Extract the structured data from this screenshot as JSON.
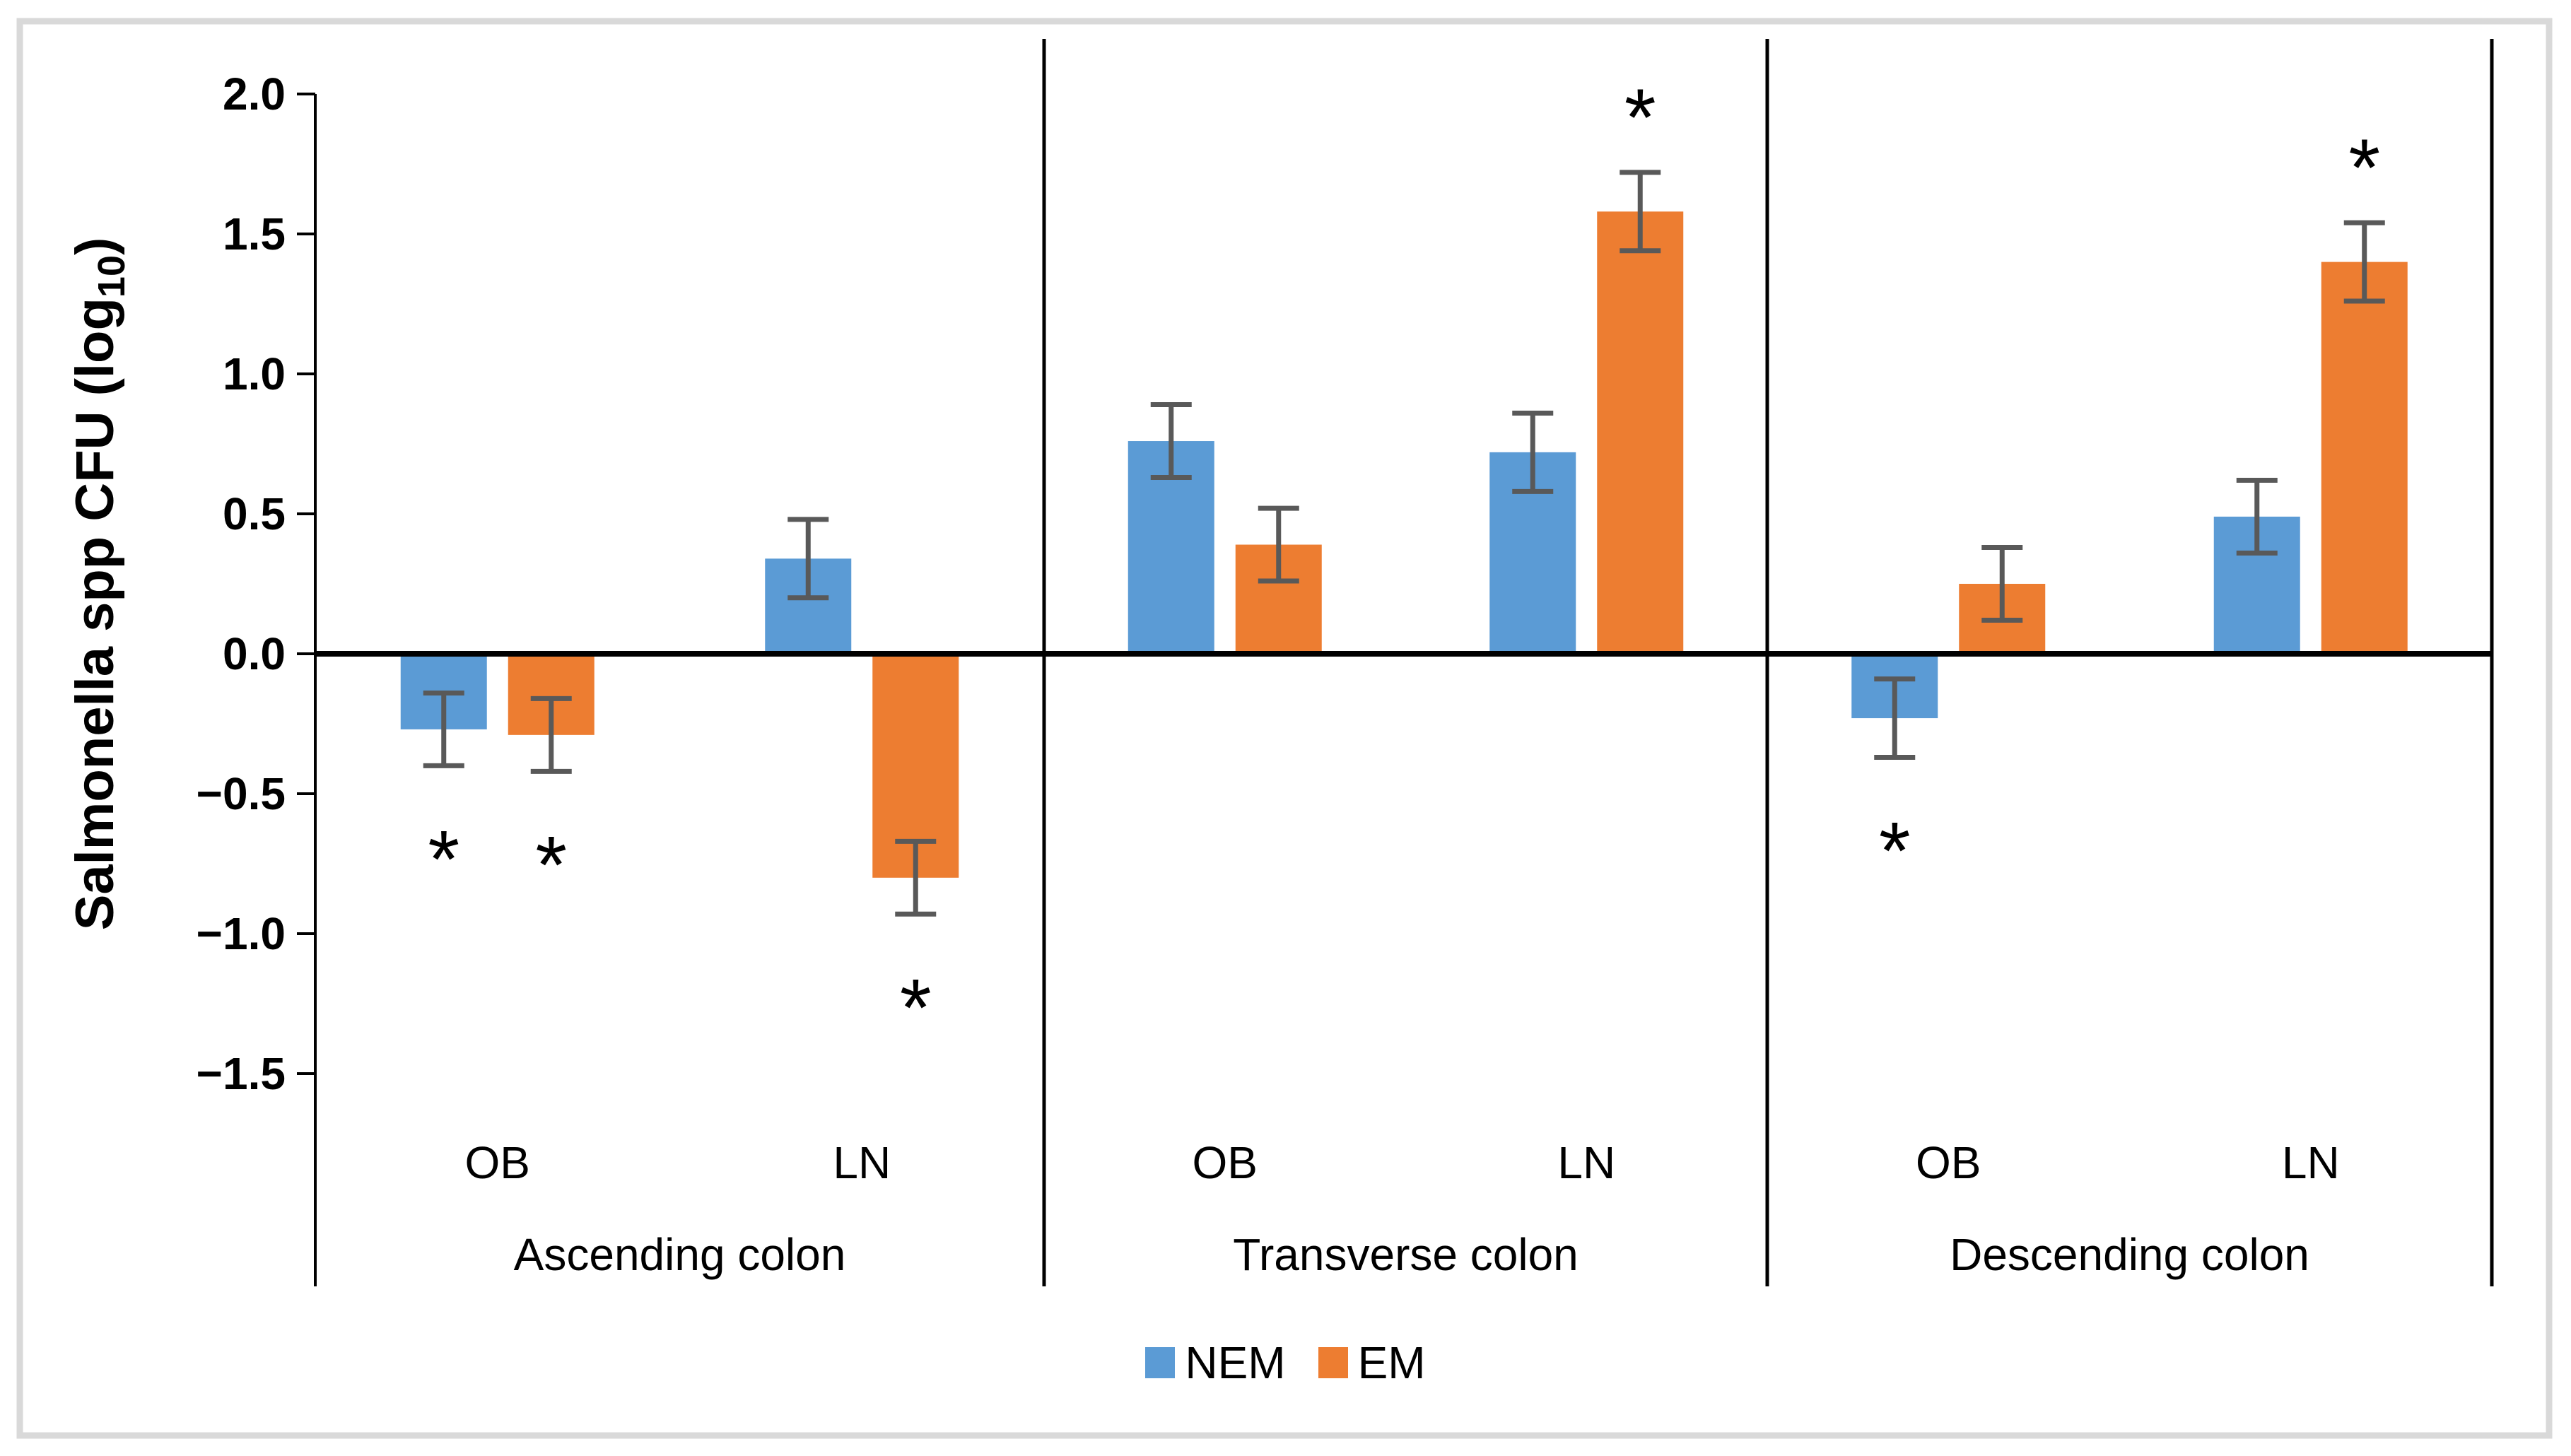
{
  "figure": {
    "background": "#FFFFFF",
    "frame_color": "#D9D9D9"
  },
  "chart_data": {
    "type": "bar",
    "title": "",
    "ylabel": {
      "prefix": "Salmonella spp CFU (log",
      "sub": "10",
      "suffix": ")"
    },
    "xlabel": "",
    "y_axis": {
      "min": -1.5,
      "max": 2.0,
      "step": 0.5,
      "ticks": [
        "2.0",
        "1.5",
        "1.0",
        "0.5",
        "0.0",
        "−0.5",
        "−1.0",
        "−1.5"
      ]
    },
    "grid": "off",
    "series": [
      {
        "name": "NEM",
        "color": "#5B9BD5"
      },
      {
        "name": "EM",
        "color": "#ED7D31"
      }
    ],
    "error_bar_color": "#595959",
    "axis_color": "#000000",
    "significance_marker": "*",
    "panels": [
      {
        "label": "Ascending colon",
        "groups": [
          {
            "label": "OB",
            "bars": [
              {
                "series": "NEM",
                "value": -0.27,
                "error": 0.13,
                "significant": true
              },
              {
                "series": "EM",
                "value": -0.29,
                "error": 0.13,
                "significant": true
              }
            ]
          },
          {
            "label": "LN",
            "bars": [
              {
                "series": "NEM",
                "value": 0.34,
                "error": 0.14,
                "significant": false
              },
              {
                "series": "EM",
                "value": -0.8,
                "error": 0.13,
                "significant": true
              }
            ]
          }
        ]
      },
      {
        "label": "Transverse colon",
        "groups": [
          {
            "label": "OB",
            "bars": [
              {
                "series": "NEM",
                "value": 0.76,
                "error": 0.13,
                "significant": false
              },
              {
                "series": "EM",
                "value": 0.39,
                "error": 0.13,
                "significant": false
              }
            ]
          },
          {
            "label": "LN",
            "bars": [
              {
                "series": "NEM",
                "value": 0.72,
                "error": 0.14,
                "significant": false
              },
              {
                "series": "EM",
                "value": 1.58,
                "error": 0.14,
                "significant": true
              }
            ]
          }
        ]
      },
      {
        "label": "Descending colon",
        "groups": [
          {
            "label": "OB",
            "bars": [
              {
                "series": "NEM",
                "value": -0.23,
                "error": 0.14,
                "significant": true
              },
              {
                "series": "EM",
                "value": 0.25,
                "error": 0.13,
                "significant": false
              }
            ]
          },
          {
            "label": "LN",
            "bars": [
              {
                "series": "NEM",
                "value": 0.49,
                "error": 0.13,
                "significant": false
              },
              {
                "series": "EM",
                "value": 1.4,
                "error": 0.14,
                "significant": true
              }
            ]
          }
        ]
      }
    ],
    "legend": {
      "position": "bottom",
      "items": [
        {
          "label": "NEM",
          "color": "#5B9BD5"
        },
        {
          "label": "EM",
          "color": "#ED7D31"
        }
      ]
    }
  }
}
